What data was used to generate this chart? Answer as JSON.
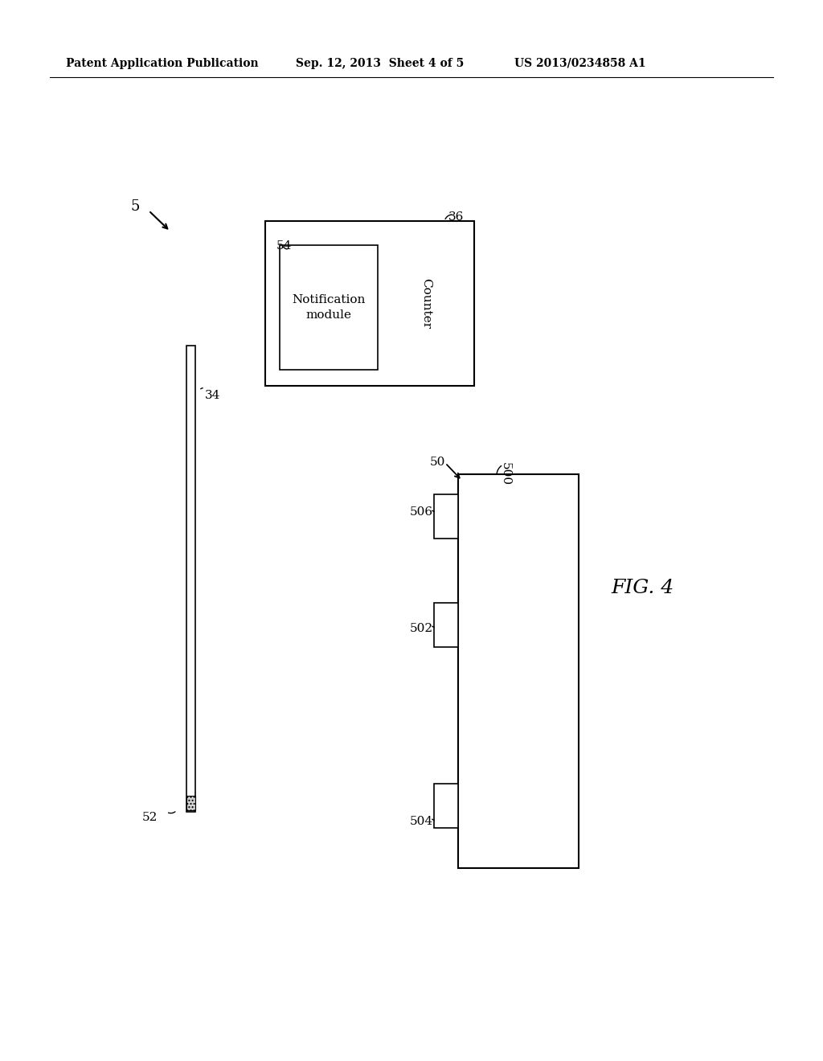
{
  "bg_color": "#ffffff",
  "header_text": "Patent Application Publication",
  "header_date": "Sep. 12, 2013  Sheet 4 of 5",
  "header_patent": "US 2013/0234858 A1",
  "fig_label": "FIG. 4",
  "label_5": "5",
  "label_34": "34",
  "label_36": "36",
  "label_50": "50",
  "label_52": "52",
  "label_54": "54",
  "label_500": "500",
  "label_502": "502",
  "label_504": "504",
  "label_506": "506",
  "text_notification_module": "Notification\nmodule",
  "text_counter": "Counter",
  "line_color": "#000000"
}
